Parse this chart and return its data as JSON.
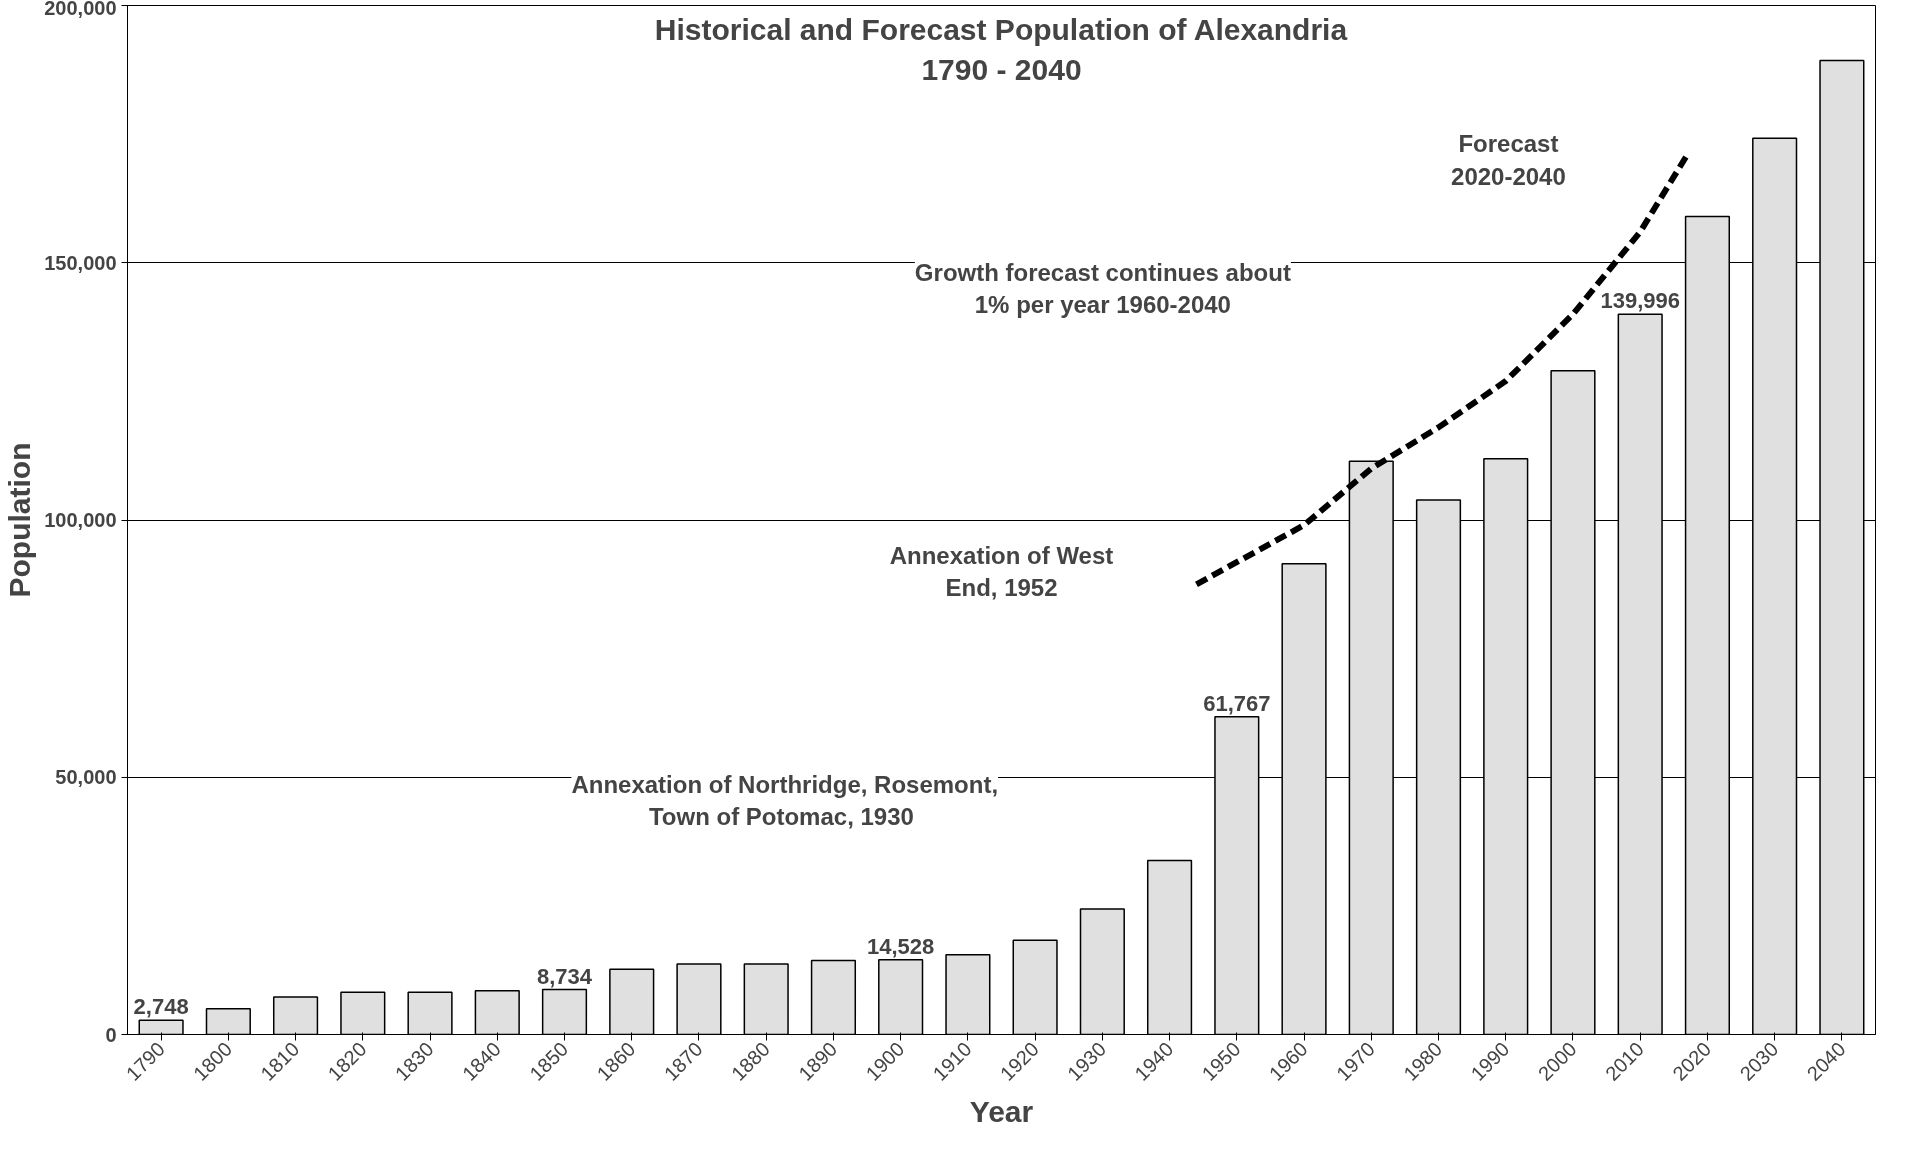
{
  "chart_data": {
    "type": "bar",
    "title": "Historical and Forecast Population of Alexandria",
    "subtitle": "1790 - 2040",
    "xlabel": "Year",
    "ylabel": "Population",
    "x": [
      1790,
      1800,
      1810,
      1820,
      1830,
      1840,
      1850,
      1860,
      1870,
      1880,
      1890,
      1900,
      1910,
      1920,
      1930,
      1940,
      1950,
      1960,
      1970,
      1980,
      1990,
      2000,
      2010,
      2020,
      2030,
      2040
    ],
    "series": [
      {
        "color": "#e0e0e0",
        "values": [
          2748,
          5000,
          7300,
          8200,
          8200,
          8500,
          8734,
          12700,
          13700,
          13700,
          14400,
          14528,
          15500,
          18300,
          24400,
          33800,
          61767,
          91500,
          111400,
          103900,
          111900,
          129000,
          139996,
          159000,
          174200,
          189300
        ],
        "value_labels": [
          "2,748",
          null,
          null,
          null,
          null,
          null,
          "8,734",
          null,
          null,
          null,
          null,
          "14,528",
          null,
          null,
          null,
          null,
          "61,767",
          null,
          null,
          null,
          null,
          null,
          "139,996",
          null,
          null,
          null
        ]
      },
      {
        "type": "line",
        "color": "#000000",
        "line_style": "dashed",
        "x": [
          1944,
          1960,
          1970,
          1980,
          1990,
          2000,
          2010,
          2017
        ],
        "values": [
          87500,
          99000,
          110000,
          118000,
          127000,
          140000,
          156000,
          171000
        ]
      }
    ],
    "annotations": [
      "Forecast\n2020-2040",
      "Growth forecast continues about\n1% per year 1960-2040",
      "Annexation of West\nEnd, 1952",
      "Annexation of Northridge, Rosemont,\nTown of  Potomac, 1930"
    ],
    "xlim": [
      1785,
      2045
    ],
    "xticks": [
      1790,
      1800,
      1810,
      1820,
      1830,
      1840,
      1850,
      1860,
      1870,
      1880,
      1890,
      1900,
      1910,
      1920,
      1930,
      1940,
      1950,
      1960,
      1970,
      1980,
      1990,
      2000,
      2010,
      2020,
      2030,
      2040
    ],
    "ylim": [
      0,
      200000
    ],
    "yticks": [
      {
        "value": 0,
        "label": "0"
      },
      {
        "value": 50000,
        "label": "50,000"
      },
      {
        "value": 100000,
        "label": "100,000"
      },
      {
        "value": 150000,
        "label": "150,000"
      },
      {
        "value": 200000,
        "label": "200,000"
      }
    ],
    "grid": "y"
  }
}
